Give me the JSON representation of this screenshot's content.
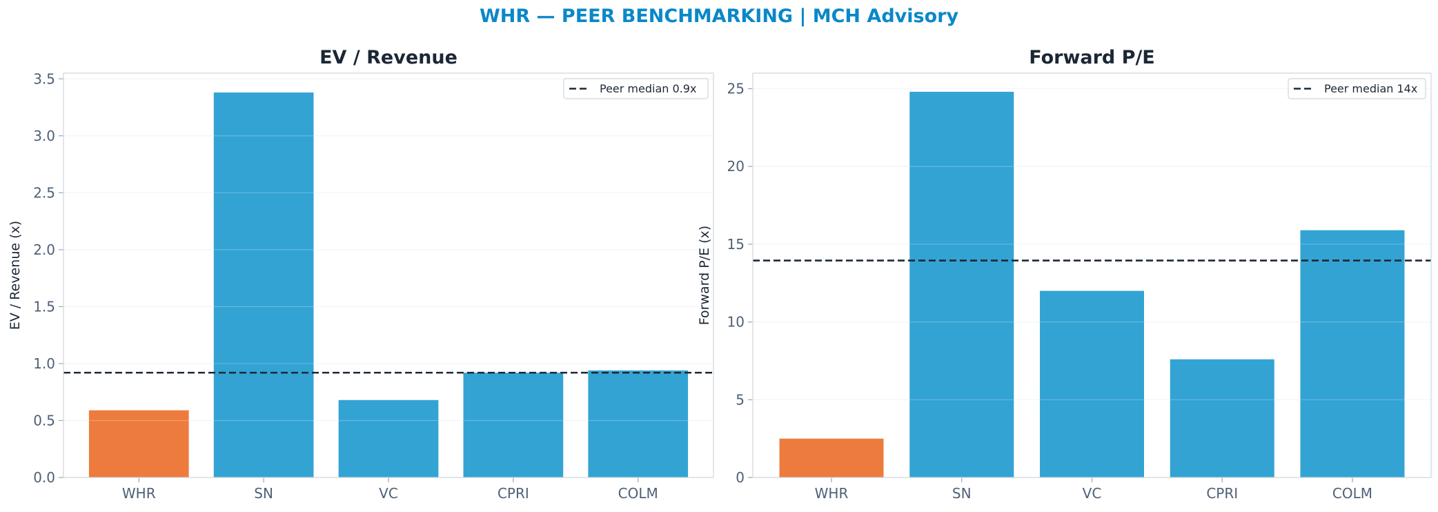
{
  "suptitle": "WHR — PEER BENCHMARKING | MCH Advisory",
  "colors": {
    "highlight": "#ED7B3D",
    "peer": "#33A3D3",
    "median_line": "#1c2735",
    "title": "#0a88c8"
  },
  "chart_data": [
    {
      "type": "bar",
      "title": "EV / Revenue",
      "ylabel": "EV / Revenue (x)",
      "categories": [
        "WHR",
        "SN",
        "VC",
        "CPRI",
        "COLM"
      ],
      "values": [
        0.59,
        3.38,
        0.68,
        0.92,
        0.94
      ],
      "highlight": "WHR",
      "ylim": [
        0,
        3.55
      ],
      "yticks": [
        0.0,
        0.5,
        1.0,
        1.5,
        2.0,
        2.5,
        3.0,
        3.5
      ],
      "ytick_labels": [
        "0.0",
        "0.5",
        "1.0",
        "1.5",
        "2.0",
        "2.5",
        "3.0",
        "3.5"
      ],
      "reference_line": {
        "value": 0.92,
        "label": "Peer median 0.9x",
        "style": "dashed"
      },
      "legend_position": "top-right",
      "grid": "y"
    },
    {
      "type": "bar",
      "title": "Forward P/E",
      "ylabel": "Forward P/E (x)",
      "categories": [
        "WHR",
        "SN",
        "VC",
        "CPRI",
        "COLM"
      ],
      "values": [
        2.5,
        24.8,
        12.0,
        7.6,
        15.9
      ],
      "highlight": "WHR",
      "ylim": [
        0,
        26
      ],
      "yticks": [
        0,
        5,
        10,
        15,
        20,
        25
      ],
      "ytick_labels": [
        "0",
        "5",
        "10",
        "15",
        "20",
        "25"
      ],
      "reference_line": {
        "value": 13.95,
        "label": "Peer median 14x",
        "style": "dashed"
      },
      "legend_position": "top-right",
      "grid": "y"
    }
  ]
}
